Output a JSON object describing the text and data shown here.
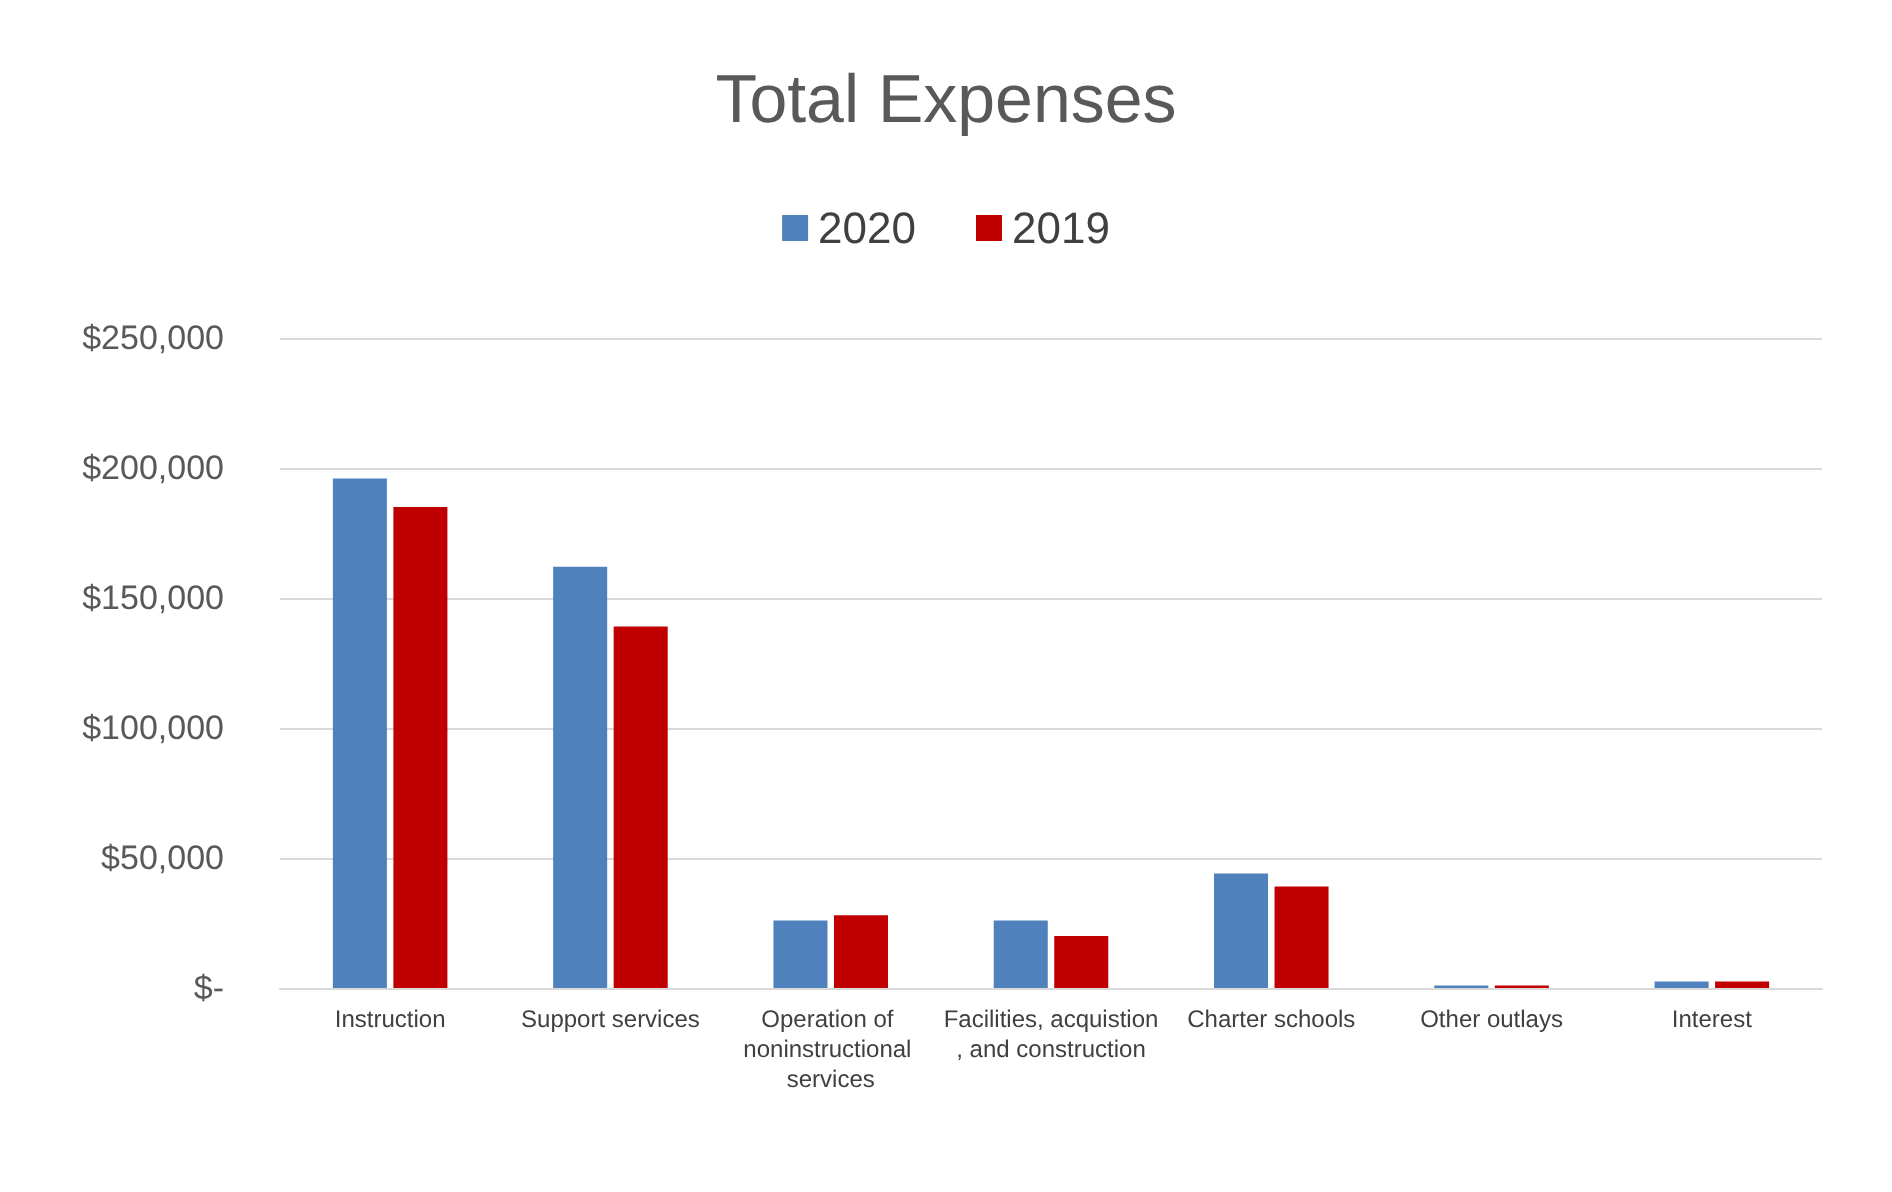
{
  "chart_data": {
    "type": "bar",
    "title": "Total Expenses",
    "categories": [
      "Instruction",
      "Support services",
      "Operation of noninstructional services",
      "Facilities, acquistion, and construction",
      "Charter schools",
      "Other outlays",
      "Interest"
    ],
    "series": [
      {
        "name": "2020",
        "color": "#4f81bd",
        "values": [
          196000,
          162000,
          26000,
          26000,
          44000,
          1000,
          2500
        ]
      },
      {
        "name": "2019",
        "color": "#c00000",
        "values": [
          185000,
          139000,
          28000,
          20000,
          39000,
          1000,
          2500
        ]
      }
    ],
    "ylim": [
      0,
      250000
    ],
    "yticks": [
      {
        "value": 0,
        "label": "$-"
      },
      {
        "value": 50000,
        "label": "$50,000"
      },
      {
        "value": 100000,
        "label": "$100,000"
      },
      {
        "value": 150000,
        "label": "$150,000"
      },
      {
        "value": 200000,
        "label": "$200,000"
      },
      {
        "value": 250000,
        "label": "$250,000"
      }
    ],
    "grid": "y",
    "legend": "top"
  }
}
